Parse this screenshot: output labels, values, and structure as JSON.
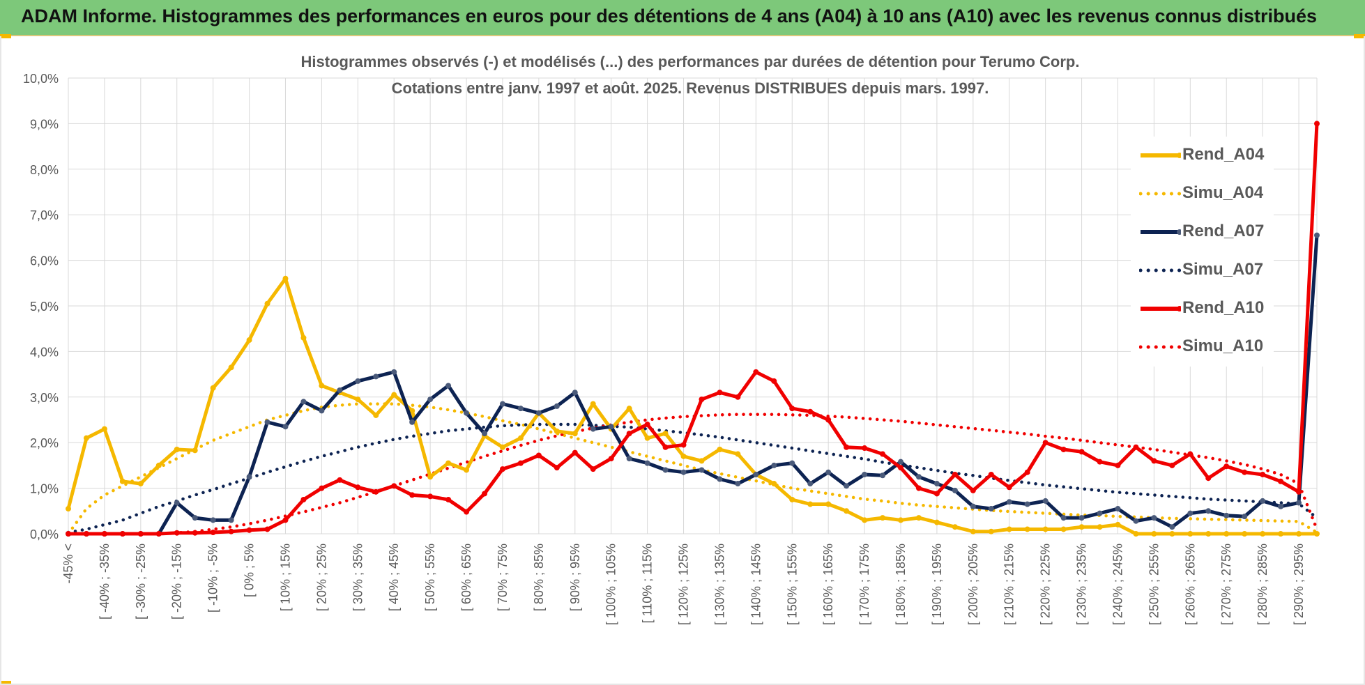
{
  "header": {
    "title": "ADAM Informe. Histogrammes des performances en euros pour des détentions de 4 ans (A04) à 10 ans (A10) avec les revenus connus distribués"
  },
  "colors": {
    "banner": "#7dc87a",
    "A04": "#f5b800",
    "A07": "#0d2352",
    "A10": "#f00000",
    "grid": "#d9d9d9",
    "axis_text": "#595959"
  },
  "chart_data": {
    "type": "line",
    "title": "Histogrammes observés (-) et modélisés (...) des performances par durées de détention pour Terumo Corp.",
    "subtitle": "Cotations entre janv. 1997 et août. 2025. Revenus DISTRIBUES depuis mars. 1997.",
    "ylim": [
      0,
      10
    ],
    "y_ticks": [
      "0,0%",
      "1,0%",
      "2,0%",
      "3,0%",
      "4,0%",
      "5,0%",
      "6,0%",
      "7,0%",
      "8,0%",
      "9,0%",
      "10,0%"
    ],
    "x_tick_labels": [
      "-45% <",
      "[ -40% ; -35%",
      "[ -30% ; -25%",
      "[ -20% ; -15%",
      "[ -10% ; -5%",
      "[ 0% ; 5%",
      "[ 10% ; 15%",
      "[ 20% ; 25%",
      "[ 30% ; 35%",
      "[ 40% ; 45%",
      "[ 50% ; 55%",
      "[ 60% ; 65%",
      "[ 70% ; 75%",
      "[ 80% ; 85%",
      "[ 90% ; 95%",
      "[ 100% ; 105%",
      "[ 110% ; 115%",
      "[ 120% ; 125%",
      "[ 130% ; 135%",
      "[ 140% ; 145%",
      "[ 150% ; 155%",
      "[ 160% ; 165%",
      "[ 170% ; 175%",
      "[ 180% ; 185%",
      "[ 190% ; 195%",
      "[ 200% ; 205%",
      "[ 210% ; 215%",
      "[ 220% ; 225%",
      "[ 230% ; 235%",
      "[ 240% ; 245%",
      "[ 250% ; 255%",
      "[ 260% ; 265%",
      "[ 270% ; 275%",
      "[ 280% ; 285%",
      "[ 290% ; 295%"
    ],
    "n_categories": 70,
    "legend_position": "right",
    "grid": true,
    "series": [
      {
        "name": "Rend_A04",
        "style": "solid",
        "color": "#f5b800",
        "values": [
          0.55,
          2.1,
          2.3,
          1.15,
          1.1,
          1.5,
          1.85,
          1.83,
          3.2,
          3.65,
          4.25,
          5.05,
          5.6,
          4.3,
          3.25,
          3.1,
          2.95,
          2.6,
          3.05,
          2.7,
          1.25,
          1.55,
          1.4,
          2.15,
          1.9,
          2.1,
          2.65,
          2.25,
          2.2,
          2.85,
          2.3,
          2.75,
          2.1,
          2.2,
          1.7,
          1.6,
          1.85,
          1.75,
          1.3,
          1.1,
          0.75,
          0.65,
          0.65,
          0.5,
          0.3,
          0.35,
          0.3,
          0.35,
          0.25,
          0.15,
          0.05,
          0.05,
          0.1,
          0.1,
          0.1,
          0.1,
          0.15,
          0.15,
          0.2,
          0.0,
          0.0,
          0.0,
          0.0,
          0.0,
          0.0,
          0.0,
          0.0,
          0.0,
          0.0,
          0.0
        ]
      },
      {
        "name": "Simu_A04",
        "style": "dotted",
        "color": "#f5b800",
        "values": [
          0.0,
          0.55,
          0.85,
          1.05,
          1.25,
          1.45,
          1.65,
          1.85,
          2.05,
          2.2,
          2.35,
          2.5,
          2.6,
          2.7,
          2.78,
          2.82,
          2.85,
          2.85,
          2.85,
          2.82,
          2.78,
          2.72,
          2.65,
          2.57,
          2.48,
          2.4,
          2.3,
          2.2,
          2.1,
          2.0,
          1.9,
          1.8,
          1.7,
          1.6,
          1.5,
          1.4,
          1.32,
          1.24,
          1.16,
          1.08,
          1.0,
          0.94,
          0.88,
          0.82,
          0.76,
          0.72,
          0.67,
          0.63,
          0.6,
          0.57,
          0.54,
          0.51,
          0.49,
          0.47,
          0.45,
          0.43,
          0.41,
          0.4,
          0.38,
          0.37,
          0.35,
          0.34,
          0.33,
          0.32,
          0.31,
          0.3,
          0.29,
          0.28,
          0.27,
          0.03
        ]
      },
      {
        "name": "Rend_A07",
        "style": "solid",
        "color": "#0d2352",
        "values": [
          0.0,
          0.0,
          0.0,
          0.0,
          0.0,
          0.0,
          0.68,
          0.35,
          0.3,
          0.3,
          1.25,
          2.45,
          2.35,
          2.9,
          2.7,
          3.15,
          3.35,
          3.45,
          3.55,
          2.45,
          2.95,
          3.25,
          2.65,
          2.2,
          2.85,
          2.75,
          2.65,
          2.8,
          3.1,
          2.3,
          2.35,
          1.65,
          1.55,
          1.4,
          1.35,
          1.4,
          1.2,
          1.1,
          1.3,
          1.5,
          1.55,
          1.1,
          1.35,
          1.05,
          1.3,
          1.28,
          1.58,
          1.25,
          1.1,
          0.95,
          0.6,
          0.55,
          0.7,
          0.65,
          0.72,
          0.35,
          0.35,
          0.45,
          0.55,
          0.28,
          0.35,
          0.15,
          0.45,
          0.5,
          0.4,
          0.38,
          0.72,
          0.6,
          0.68,
          6.55
        ]
      },
      {
        "name": "Simu_A07",
        "style": "dotted",
        "color": "#0d2352",
        "values": [
          0.03,
          0.1,
          0.2,
          0.3,
          0.45,
          0.6,
          0.72,
          0.85,
          0.97,
          1.1,
          1.22,
          1.35,
          1.47,
          1.59,
          1.7,
          1.8,
          1.9,
          1.99,
          2.07,
          2.14,
          2.2,
          2.26,
          2.3,
          2.34,
          2.37,
          2.39,
          2.4,
          2.4,
          2.4,
          2.38,
          2.36,
          2.34,
          2.3,
          2.26,
          2.22,
          2.17,
          2.12,
          2.06,
          2.0,
          1.94,
          1.88,
          1.82,
          1.76,
          1.7,
          1.64,
          1.57,
          1.51,
          1.45,
          1.39,
          1.33,
          1.28,
          1.22,
          1.17,
          1.12,
          1.07,
          1.03,
          0.99,
          0.95,
          0.91,
          0.88,
          0.85,
          0.82,
          0.79,
          0.76,
          0.74,
          0.72,
          0.7,
          0.68,
          0.66,
          0.35
        ]
      },
      {
        "name": "Rend_A10",
        "style": "solid",
        "color": "#f00000",
        "values": [
          0.0,
          0.0,
          0.0,
          0.0,
          0.0,
          0.0,
          0.02,
          0.02,
          0.03,
          0.05,
          0.08,
          0.1,
          0.3,
          0.75,
          1.0,
          1.18,
          1.02,
          0.92,
          1.05,
          0.85,
          0.82,
          0.75,
          0.48,
          0.88,
          1.42,
          1.55,
          1.72,
          1.45,
          1.78,
          1.42,
          1.65,
          2.2,
          2.4,
          1.9,
          1.95,
          2.95,
          3.1,
          3.0,
          3.55,
          3.35,
          2.75,
          2.68,
          2.5,
          1.9,
          1.88,
          1.75,
          1.45,
          1.0,
          0.88,
          1.3,
          0.95,
          1.3,
          1.02,
          1.35,
          2.0,
          1.85,
          1.8,
          1.58,
          1.5,
          1.9,
          1.6,
          1.5,
          1.75,
          1.22,
          1.48,
          1.35,
          1.3,
          1.15,
          0.92,
          9.0
        ]
      },
      {
        "name": "Simu_A10",
        "style": "dotted",
        "color": "#f00000",
        "values": [
          0.0,
          0.0,
          0.0,
          0.0,
          0.0,
          0.0,
          0.02,
          0.05,
          0.1,
          0.15,
          0.22,
          0.3,
          0.39,
          0.48,
          0.58,
          0.68,
          0.8,
          0.92,
          1.05,
          1.18,
          1.31,
          1.44,
          1.57,
          1.7,
          1.82,
          1.94,
          2.05,
          2.15,
          2.24,
          2.32,
          2.39,
          2.45,
          2.5,
          2.54,
          2.57,
          2.59,
          2.61,
          2.62,
          2.62,
          2.62,
          2.61,
          2.6,
          2.58,
          2.56,
          2.53,
          2.5,
          2.47,
          2.43,
          2.39,
          2.35,
          2.31,
          2.27,
          2.23,
          2.19,
          2.14,
          2.1,
          2.05,
          2.0,
          1.95,
          1.9,
          1.85,
          1.79,
          1.73,
          1.67,
          1.6,
          1.52,
          1.42,
          1.3,
          1.1,
          0.1
        ]
      }
    ]
  }
}
